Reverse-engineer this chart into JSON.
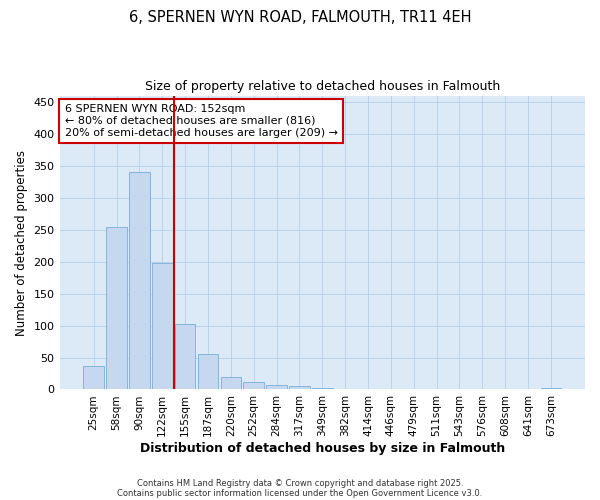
{
  "title": "6, SPERNEN WYN ROAD, FALMOUTH, TR11 4EH",
  "subtitle": "Size of property relative to detached houses in Falmouth",
  "xlabel": "Distribution of detached houses by size in Falmouth",
  "ylabel": "Number of detached properties",
  "bar_labels": [
    "25sqm",
    "58sqm",
    "90sqm",
    "122sqm",
    "155sqm",
    "187sqm",
    "220sqm",
    "252sqm",
    "284sqm",
    "317sqm",
    "349sqm",
    "382sqm",
    "414sqm",
    "446sqm",
    "479sqm",
    "511sqm",
    "543sqm",
    "576sqm",
    "608sqm",
    "641sqm",
    "673sqm"
  ],
  "bar_values": [
    37,
    255,
    340,
    198,
    103,
    55,
    20,
    11,
    7,
    5,
    3,
    1,
    0,
    0,
    0,
    0,
    0,
    0,
    0,
    0,
    3
  ],
  "bar_color": "#c5d8f0",
  "bar_edge_color": "#7aadd4",
  "vline_x_index": 3.5,
  "vline_color": "#cc0000",
  "annotation_text": "6 SPERNEN WYN ROAD: 152sqm\n← 80% of detached houses are smaller (816)\n20% of semi-detached houses are larger (209) →",
  "annotation_box_edgecolor": "#cc0000",
  "annotation_facecolor": "white",
  "ylim": [
    0,
    460
  ],
  "yticks": [
    0,
    50,
    100,
    150,
    200,
    250,
    300,
    350,
    400,
    450
  ],
  "footer1": "Contains HM Land Registry data © Crown copyright and database right 2025.",
  "footer2": "Contains public sector information licensed under the Open Government Licence v3.0.",
  "fig_bg_color": "#ffffff",
  "plot_bg_color": "#dce9f7",
  "grid_color": "#b8cfe8"
}
